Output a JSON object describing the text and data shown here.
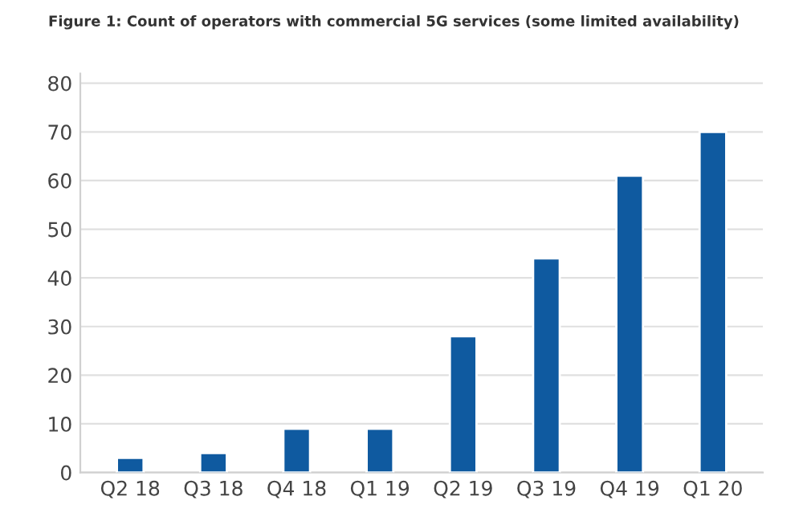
{
  "chart_data": {
    "type": "bar",
    "title": "Figure 1: Count of operators with commercial 5G services (some limited availability)",
    "categories": [
      "Q2 18",
      "Q3 18",
      "Q4 18",
      "Q1 19",
      "Q2 19",
      "Q3 19",
      "Q4 19",
      "Q1 20"
    ],
    "values": [
      3,
      4,
      9,
      9,
      28,
      44,
      61,
      70
    ],
    "color": "#0f5aa0",
    "ylim": [
      0,
      82
    ],
    "yticks": [
      0,
      10,
      20,
      30,
      40,
      50,
      60,
      70,
      80
    ],
    "grid": "y",
    "legend": false
  }
}
